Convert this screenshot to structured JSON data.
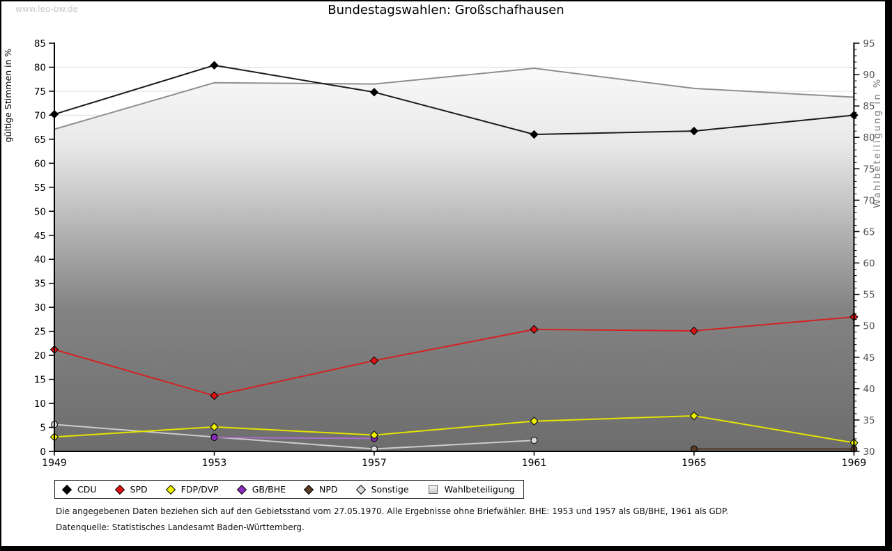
{
  "watermark": "www.leo-bw.de",
  "title": "Bundestagswahlen: Großschafhausen",
  "footnotes": {
    "line1": "Die angegebenen Daten beziehen sich auf den Gebietsstand vom 27.05.1970. Alle Ergebnisse ohne Briefwähler. BHE: 1953 und 1957 als GB/BHE, 1961 als GDP.",
    "line2": "Datenquelle: Statistisches Landesamt Baden-Württemberg."
  },
  "chart_data": {
    "type": "line",
    "categories": [
      "1949",
      "1953",
      "1957",
      "1961",
      "1965",
      "1969"
    ],
    "left_axis": {
      "label": "gültige Stimmen in %",
      "min": 0,
      "max": 85,
      "tick_step": 5
    },
    "right_axis": {
      "label": "Wahlbeteiligung in %",
      "min": 30,
      "max": 95,
      "tick_step": 5,
      "minor_tick_step": 1
    },
    "grid": true,
    "legend_position": "bottom",
    "series": [
      {
        "name": "Wahlbeteiligung",
        "axis": "right",
        "render": "area",
        "line_color": "#8f8f8f",
        "values": [
          81.3,
          88.7,
          88.5,
          91.0,
          87.8,
          86.4
        ]
      },
      {
        "name": "Sonstige",
        "axis": "left",
        "render": "line",
        "marker": "circle",
        "line_color": "#cccccc",
        "marker_color": "#d9d9d9",
        "values": [
          5.6,
          3.0,
          0.5,
          2.3,
          null,
          null
        ]
      },
      {
        "name": "GB/BHE",
        "axis": "left",
        "render": "line",
        "marker": "circle",
        "line_color": "#a96fc8",
        "marker_color": "#8a2dbe",
        "values": [
          null,
          2.9,
          2.7,
          null,
          null,
          null
        ]
      },
      {
        "name": "NPD",
        "axis": "left",
        "render": "line",
        "marker": "circle",
        "line_color": "#4f3421",
        "marker_color": "#5d3d26",
        "values": [
          null,
          null,
          null,
          null,
          0.5,
          0.5
        ]
      },
      {
        "name": "FDP/DVP",
        "axis": "left",
        "render": "line",
        "marker": "diamond",
        "line_color": "#e4e400",
        "marker_color": "#f0f000",
        "values": [
          3.0,
          5.1,
          3.4,
          6.3,
          7.4,
          1.8
        ]
      },
      {
        "name": "SPD",
        "axis": "left",
        "render": "line",
        "marker": "diamond",
        "line_color": "#d42222",
        "marker_color": "#dd1111",
        "values": [
          21.2,
          11.6,
          18.9,
          25.4,
          25.1,
          28.0
        ]
      },
      {
        "name": "CDU",
        "axis": "left",
        "render": "line",
        "marker": "diamond",
        "line_color": "#1a1a1a",
        "marker_color": "#000000",
        "values": [
          70.2,
          80.4,
          74.8,
          66.0,
          66.7,
          70.0
        ]
      }
    ],
    "legend_order": [
      "CDU",
      "SPD",
      "FDP/DVP",
      "GB/BHE",
      "NPD",
      "Sonstige",
      "Wahlbeteiligung"
    ],
    "area_gradient": [
      "#ffffff",
      "#e8e8e8",
      "#838383",
      "#6d6d6d"
    ],
    "grid_color": "#dcdcdc"
  }
}
